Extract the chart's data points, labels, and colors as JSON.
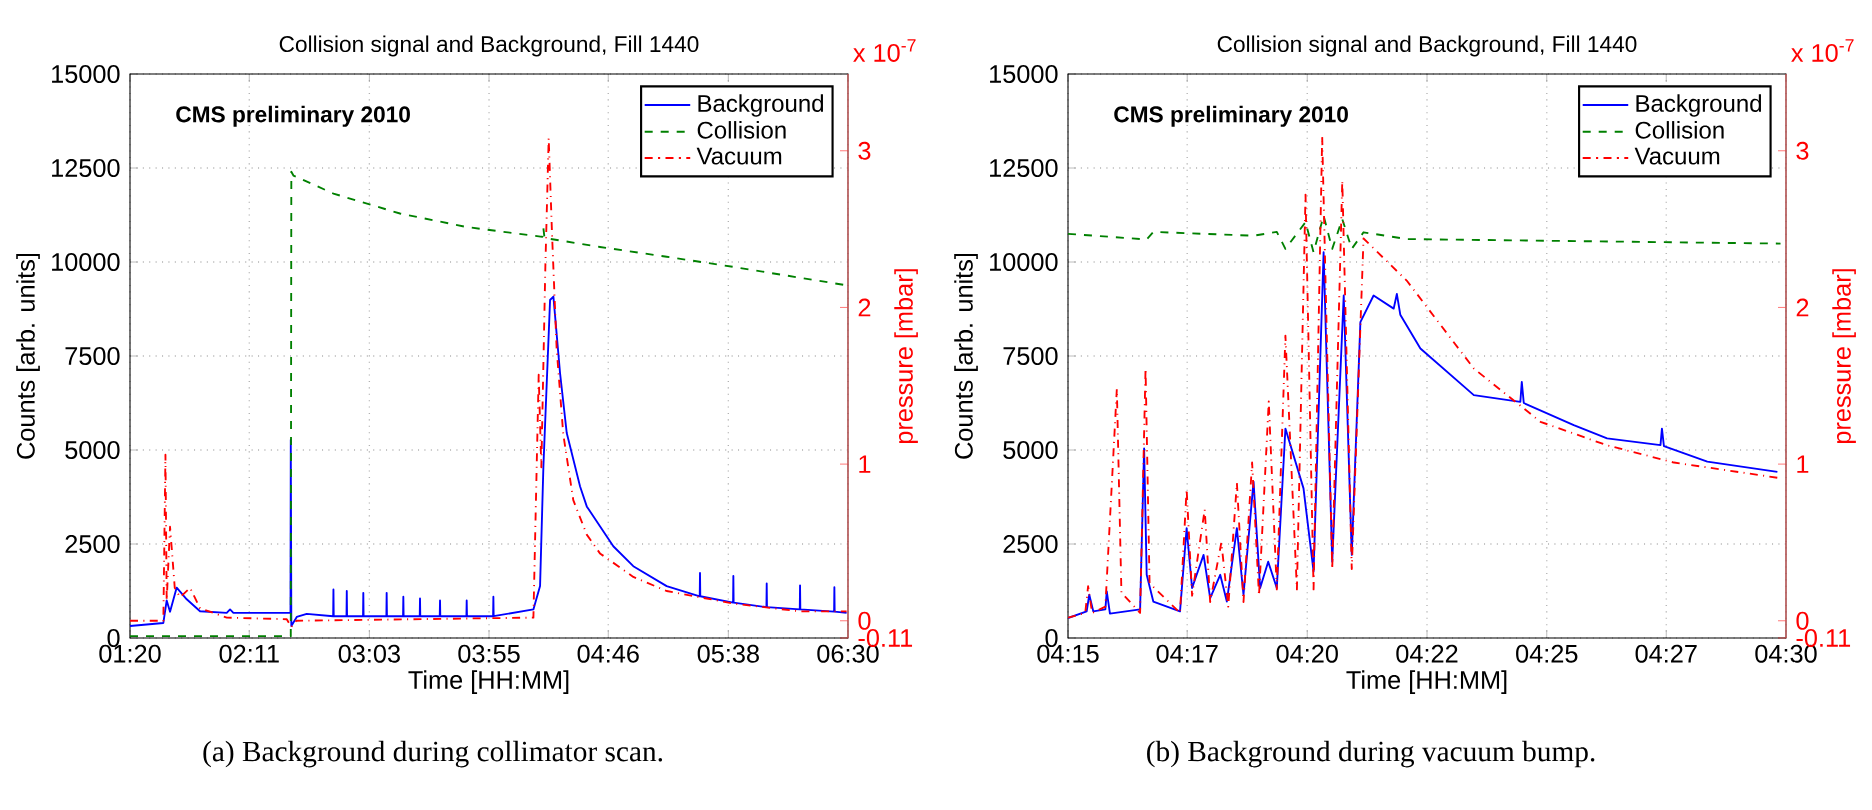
{
  "chart_data": [
    {
      "type": "line",
      "title": "Collision signal and Background, Fill 1440",
      "xlabel": "Time [HH:MM]",
      "ylabel": "Counts [arb. units]",
      "y2label": "pressure [mbar]",
      "annotations": [
        "CMS preliminary 2010",
        "x 10$^{-7}$",
        "(a)  Background during collimator scan."
      ],
      "xlim": [
        1.333,
        6.5
      ],
      "xticks": [
        {
          "value": 1.333,
          "label": "01:20"
        },
        {
          "value": 2.1913,
          "label": "02:11"
        },
        {
          "value": 3.0556,
          "label": "03:03"
        },
        {
          "value": 3.9167,
          "label": "03:55"
        },
        {
          "value": 4.7747,
          "label": "04:46"
        },
        {
          "value": 5.6389,
          "label": "05:38"
        },
        {
          "value": 6.5,
          "label": "06:30"
        }
      ],
      "ylim": [
        0,
        15000
      ],
      "yticks": [
        0,
        2500,
        5000,
        7500,
        10000,
        12500,
        15000
      ],
      "y2lim": [
        -0.11,
        3.49
      ],
      "y2ticks": [
        -0.11,
        0,
        1,
        2,
        3
      ],
      "grid": true,
      "legend": "top right",
      "series": [
        {
          "name": "Background",
          "color": "#0000ff",
          "line_style": "solid",
          "x": [
            1.333,
            1.573,
            1.597,
            1.621,
            1.669,
            1.741,
            1.837,
            2.029,
            2.053,
            2.077,
            2.461,
            2.488,
            2.49,
            2.494,
            2.533,
            2.605,
            2.795,
            2.797,
            2.799,
            2.891,
            2.893,
            2.895,
            3.01,
            3.012,
            3.014,
            3.178,
            3.18,
            3.182,
            3.298,
            3.3,
            3.302,
            3.418,
            3.42,
            3.422,
            3.562,
            3.564,
            3.566,
            3.754,
            3.756,
            3.758,
            3.946,
            3.948,
            3.95,
            4.236,
            4.284,
            4.308,
            4.356,
            4.38,
            4.428,
            4.476,
            4.572,
            4.62,
            4.715,
            4.811,
            4.955,
            5.195,
            5.433,
            5.435,
            5.437,
            5.673,
            5.675,
            5.677,
            5.913,
            5.915,
            5.917,
            6.153,
            6.155,
            6.157,
            6.4,
            6.402,
            6.404,
            6.49
          ],
          "values": [
            320,
            400,
            1000,
            700,
            1340,
            1030,
            710,
            670,
            760,
            670,
            670,
            670,
            5270,
            320,
            560,
            640,
            580,
            1290,
            580,
            580,
            1250,
            580,
            580,
            1200,
            580,
            580,
            1200,
            580,
            580,
            1100,
            580,
            580,
            1050,
            580,
            580,
            1000,
            580,
            580,
            1000,
            580,
            580,
            1100,
            580,
            760,
            1380,
            4560,
            8990,
            9080,
            7040,
            5450,
            4030,
            3500,
            2970,
            2440,
            1910,
            1380,
            1110,
            1730,
            1110,
            940,
            1650,
            940,
            820,
            1450,
            820,
            760,
            1400,
            760,
            700,
            1350,
            700,
            670
          ]
        },
        {
          "name": "Collision",
          "color": "#008000",
          "line_style": "dashed",
          "x": [
            1.333,
            2.49,
            2.494,
            2.509,
            2.797,
            3.276,
            3.756,
            4.3,
            4.308,
            4.316,
            4.715,
            5.195,
            5.675,
            6.49
          ],
          "values": [
            50,
            50,
            12400,
            12300,
            11820,
            11290,
            10930,
            10670,
            10900,
            10640,
            10400,
            10140,
            9870,
            9380
          ]
        },
        {
          "name": "Vacuum",
          "color": "#ff0000",
          "line_style": "dashdot",
          "axis": "y2",
          "x": [
            1.333,
            1.573,
            1.588,
            1.597,
            1.621,
            1.636,
            1.655,
            1.693,
            1.765,
            1.837,
            2.029,
            2.461,
            2.494,
            2.53,
            4.236,
            4.274,
            4.293,
            4.322,
            4.346,
            4.37,
            4.403,
            4.451,
            4.523,
            4.62,
            4.715,
            4.955,
            5.195,
            5.675,
            6.155,
            6.49
          ],
          "values": [
            0,
            0,
            1.06,
            0.13,
            0.6,
            0.43,
            0.21,
            0.15,
            0.21,
            0.08,
            0.02,
            0.01,
            -0.04,
            0,
            0.02,
            1.57,
            0.98,
            2.26,
            3.08,
            2.47,
            1.74,
            1.19,
            0.77,
            0.55,
            0.43,
            0.28,
            0.19,
            0.11,
            0.06,
            0.06
          ]
        }
      ]
    },
    {
      "type": "line",
      "title": "Collision signal and Background, Fill 1440",
      "xlabel": "Time [HH:MM]",
      "ylabel": "Counts [arb. units]",
      "y2label": "pressure [mbar]",
      "annotations": [
        "CMS preliminary 2010",
        "x 10$^{-7}$",
        "(b)  Background during vacuum bump."
      ],
      "xlim": [
        4.25,
        4.5
      ],
      "xticks": [
        {
          "value": 4.25,
          "label": "04:15"
        },
        {
          "value": 4.2915,
          "label": "04:17"
        },
        {
          "value": 4.3333,
          "label": "04:20"
        },
        {
          "value": 4.375,
          "label": "04:22"
        },
        {
          "value": 4.4167,
          "label": "04:25"
        },
        {
          "value": 4.4583,
          "label": "04:27"
        },
        {
          "value": 4.5,
          "label": "04:30"
        }
      ],
      "ylim": [
        0,
        15000
      ],
      "yticks": [
        0,
        2500,
        5000,
        7500,
        10000,
        12500,
        15000
      ],
      "y2lim": [
        -0.11,
        3.49
      ],
      "y2ticks": [
        -0.11,
        0,
        1,
        2,
        3
      ],
      "grid": true,
      "legend": "top right",
      "series": [
        {
          "name": "Background",
          "color": "#0000ff",
          "line_style": "solid",
          "x": [
            4.25,
            4.2565,
            4.2574,
            4.2588,
            4.263,
            4.2635,
            4.2646,
            4.2751,
            4.2765,
            4.2774,
            4.2797,
            4.289,
            4.2913,
            4.2932,
            4.2972,
            4.2995,
            4.303,
            4.3053,
            4.3088,
            4.3111,
            4.3146,
            4.3169,
            4.3197,
            4.3227,
            4.3257,
            4.332,
            4.3355,
            4.339,
            4.342,
            4.346,
            4.3488,
            4.3518,
            4.3564,
            4.3634,
            4.3645,
            4.3657,
            4.3727,
            4.3913,
            4.4075,
            4.408,
            4.4087,
            4.4261,
            4.4377,
            4.4563,
            4.4568,
            4.4575,
            4.4726,
            4.497
          ],
          "values": [
            530,
            710,
            1150,
            710,
            760,
            1240,
            650,
            760,
            5040,
            1680,
            970,
            710,
            2920,
            1330,
            2210,
            1060,
            1680,
            970,
            2920,
            1150,
            4160,
            1330,
            2030,
            1330,
            5570,
            3980,
            1770,
            10260,
            2030,
            9110,
            2210,
            8400,
            9110,
            8760,
            9150,
            8600,
            7700,
            6460,
            6280,
            6810,
            6250,
            5660,
            5310,
            5130,
            5570,
            5100,
            4690,
            4420
          ]
        },
        {
          "name": "Collision",
          "color": "#008000",
          "line_style": "dashed",
          "x": [
            4.25,
            4.2774,
            4.2797,
            4.3146,
            4.3227,
            4.3257,
            4.3327,
            4.3355,
            4.339,
            4.342,
            4.3455,
            4.3488,
            4.3529,
            4.368,
            4.4981
          ],
          "values": [
            10750,
            10600,
            10800,
            10700,
            10800,
            10350,
            11060,
            10260,
            11230,
            10350,
            11140,
            10350,
            10790,
            10610,
            10490
          ]
        },
        {
          "name": "Vacuum",
          "color": "#ff0000",
          "line_style": "dashdot",
          "axis": "y2",
          "x": [
            4.25,
            4.256,
            4.257,
            4.2584,
            4.263,
            4.267,
            4.2686,
            4.2751,
            4.277,
            4.2784,
            4.289,
            4.2913,
            4.2932,
            4.2976,
            4.2995,
            4.3034,
            4.3058,
            4.3088,
            4.3111,
            4.3141,
            4.3165,
            4.3199,
            4.3227,
            4.3257,
            4.3297,
            4.3327,
            4.3355,
            4.3385,
            4.342,
            4.3455,
            4.3488,
            4.3529,
            4.368,
            4.3913,
            4.4145,
            4.4377,
            4.461,
            4.4981
          ],
          "values": [
            0.02,
            0.05,
            0.22,
            0.05,
            0.09,
            1.48,
            0.18,
            0.05,
            1.61,
            0.24,
            0.05,
            0.84,
            0.16,
            0.71,
            0.12,
            0.5,
            0.09,
            0.88,
            0.12,
            1.01,
            0.16,
            1.4,
            0.2,
            1.82,
            0.2,
            2.72,
            0.2,
            3.09,
            0.33,
            2.81,
            0.33,
            2.44,
            2.17,
            1.61,
            1.27,
            1.12,
            1.01,
            0.91
          ]
        }
      ]
    }
  ]
}
